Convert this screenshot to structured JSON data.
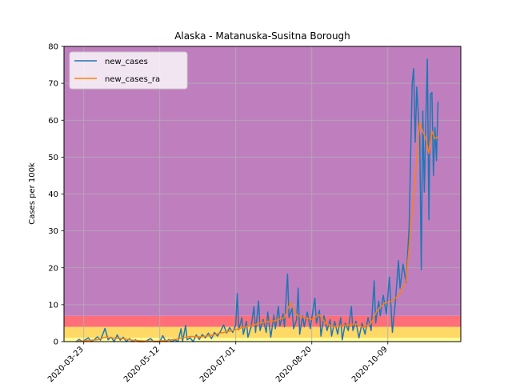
{
  "chart_data": {
    "type": "line",
    "title": "Alaska - Matanuska-Susitna Borough",
    "xlabel": "",
    "ylabel": "Cases per 100k",
    "x_range": [
      "2020-03-10",
      "2020-11-26"
    ],
    "ylim": [
      0,
      80
    ],
    "yticks": [
      0,
      10,
      20,
      30,
      40,
      50,
      60,
      70,
      80
    ],
    "xtick_dates": [
      "2020-03-23",
      "2020-05-12",
      "2020-07-01",
      "2020-08-20",
      "2020-10-09"
    ],
    "xtick_labels": [
      "2020-03-23",
      "2020-05-12",
      "2020-07-01",
      "2020-08-20",
      "2020-10-09"
    ],
    "grid": true,
    "legend_position": "top-left",
    "risk_bands": [
      {
        "from": 0,
        "to": 1,
        "color": "#ffff99"
      },
      {
        "from": 1,
        "to": 4,
        "color": "#ffd966"
      },
      {
        "from": 4,
        "to": 7,
        "color": "#ff6f7a"
      },
      {
        "from": 7,
        "to": 80,
        "color": "#bf7fbf"
      }
    ],
    "series": [
      {
        "name": "new_cases",
        "color": "#1f77b4",
        "points": [
          [
            "2020-03-18",
            0.0
          ],
          [
            "2020-03-20",
            0.6
          ],
          [
            "2020-03-22",
            0.0
          ],
          [
            "2020-03-24",
            0.5
          ],
          [
            "2020-03-26",
            1.0
          ],
          [
            "2020-03-28",
            0.0
          ],
          [
            "2020-03-30",
            0.5
          ],
          [
            "2020-04-01",
            1.3
          ],
          [
            "2020-04-03",
            0.4
          ],
          [
            "2020-04-05",
            2.5
          ],
          [
            "2020-04-06",
            3.6
          ],
          [
            "2020-04-08",
            0.5
          ],
          [
            "2020-04-10",
            1.2
          ],
          [
            "2020-04-12",
            0.0
          ],
          [
            "2020-04-14",
            1.8
          ],
          [
            "2020-04-16",
            0.4
          ],
          [
            "2020-04-18",
            1.2
          ],
          [
            "2020-04-20",
            0.0
          ],
          [
            "2020-04-22",
            0.8
          ],
          [
            "2020-04-24",
            0.0
          ],
          [
            "2020-04-26",
            0.5
          ],
          [
            "2020-04-28",
            0.0
          ],
          [
            "2020-05-02",
            0.0
          ],
          [
            "2020-05-06",
            0.8
          ],
          [
            "2020-05-08",
            0.0
          ],
          [
            "2020-05-12",
            0.0
          ],
          [
            "2020-05-14",
            1.6
          ],
          [
            "2020-05-16",
            0.0
          ],
          [
            "2020-05-18",
            0.6
          ],
          [
            "2020-05-20",
            0.0
          ],
          [
            "2020-05-22",
            0.5
          ],
          [
            "2020-05-24",
            0.0
          ],
          [
            "2020-05-26",
            3.5
          ],
          [
            "2020-05-27",
            0.0
          ],
          [
            "2020-05-29",
            4.4
          ],
          [
            "2020-05-30",
            0.5
          ],
          [
            "2020-06-01",
            1.0
          ],
          [
            "2020-06-03",
            0.0
          ],
          [
            "2020-06-05",
            1.8
          ],
          [
            "2020-06-07",
            0.6
          ],
          [
            "2020-06-09",
            1.9
          ],
          [
            "2020-06-11",
            1.0
          ],
          [
            "2020-06-13",
            2.3
          ],
          [
            "2020-06-15",
            0.8
          ],
          [
            "2020-06-17",
            2.5
          ],
          [
            "2020-06-19",
            1.5
          ],
          [
            "2020-06-21",
            2.8
          ],
          [
            "2020-06-23",
            4.5
          ],
          [
            "2020-06-25",
            2.3
          ],
          [
            "2020-06-27",
            3.8
          ],
          [
            "2020-06-29",
            2.5
          ],
          [
            "2020-07-01",
            4.6
          ],
          [
            "2020-07-02",
            13.0
          ],
          [
            "2020-07-03",
            3.2
          ],
          [
            "2020-07-05",
            6.5
          ],
          [
            "2020-07-06",
            2.0
          ],
          [
            "2020-07-08",
            5.5
          ],
          [
            "2020-07-09",
            1.2
          ],
          [
            "2020-07-11",
            3.8
          ],
          [
            "2020-07-13",
            9.5
          ],
          [
            "2020-07-14",
            2.5
          ],
          [
            "2020-07-16",
            11.0
          ],
          [
            "2020-07-17",
            3.0
          ],
          [
            "2020-07-19",
            6.0
          ],
          [
            "2020-07-21",
            2.5
          ],
          [
            "2020-07-22",
            8.0
          ],
          [
            "2020-07-24",
            1.2
          ],
          [
            "2020-07-26",
            7.2
          ],
          [
            "2020-07-27",
            3.5
          ],
          [
            "2020-07-29",
            9.5
          ],
          [
            "2020-07-30",
            4.2
          ],
          [
            "2020-08-01",
            7.5
          ],
          [
            "2020-08-02",
            4.0
          ],
          [
            "2020-08-04",
            18.3
          ],
          [
            "2020-08-05",
            6.5
          ],
          [
            "2020-08-07",
            9.0
          ],
          [
            "2020-08-08",
            3.5
          ],
          [
            "2020-08-10",
            6.0
          ],
          [
            "2020-08-11",
            14.5
          ],
          [
            "2020-08-12",
            2.0
          ],
          [
            "2020-08-14",
            7.0
          ],
          [
            "2020-08-15",
            4.0
          ],
          [
            "2020-08-17",
            8.0
          ],
          [
            "2020-08-19",
            3.5
          ],
          [
            "2020-08-20",
            6.5
          ],
          [
            "2020-08-22",
            11.8
          ],
          [
            "2020-08-23",
            5.0
          ],
          [
            "2020-08-25",
            8.5
          ],
          [
            "2020-08-26",
            1.5
          ],
          [
            "2020-08-28",
            7.0
          ],
          [
            "2020-08-30",
            3.0
          ],
          [
            "2020-09-01",
            6.0
          ],
          [
            "2020-09-02",
            1.5
          ],
          [
            "2020-09-04",
            5.5
          ],
          [
            "2020-09-06",
            2.0
          ],
          [
            "2020-09-08",
            6.5
          ],
          [
            "2020-09-09",
            0.5
          ],
          [
            "2020-09-11",
            5.0
          ],
          [
            "2020-09-13",
            3.0
          ],
          [
            "2020-09-15",
            9.5
          ],
          [
            "2020-09-16",
            3.0
          ],
          [
            "2020-09-18",
            5.5
          ],
          [
            "2020-09-20",
            1.0
          ],
          [
            "2020-09-22",
            5.0
          ],
          [
            "2020-09-24",
            2.0
          ],
          [
            "2020-09-26",
            6.5
          ],
          [
            "2020-09-28",
            3.0
          ],
          [
            "2020-09-30",
            16.5
          ],
          [
            "2020-10-01",
            5.0
          ],
          [
            "2020-10-03",
            11.0
          ],
          [
            "2020-10-04",
            7.0
          ],
          [
            "2020-10-06",
            12.5
          ],
          [
            "2020-10-08",
            7.5
          ],
          [
            "2020-10-10",
            17.5
          ],
          [
            "2020-10-12",
            2.5
          ],
          [
            "2020-10-14",
            11.0
          ],
          [
            "2020-10-16",
            22.0
          ],
          [
            "2020-10-17",
            14.5
          ],
          [
            "2020-10-19",
            21.0
          ],
          [
            "2020-10-21",
            16.0
          ],
          [
            "2020-10-23",
            31.0
          ],
          [
            "2020-10-25",
            70.0
          ],
          [
            "2020-10-26",
            74.0
          ],
          [
            "2020-10-27",
            54.0
          ],
          [
            "2020-10-28",
            69.0
          ],
          [
            "2020-10-29",
            62.0
          ],
          [
            "2020-10-30",
            55.0
          ],
          [
            "2020-10-31",
            19.5
          ],
          [
            "2020-11-01",
            62.5
          ],
          [
            "2020-11-02",
            40.5
          ],
          [
            "2020-11-03",
            60.0
          ],
          [
            "2020-11-04",
            76.5
          ],
          [
            "2020-11-05",
            33.0
          ],
          [
            "2020-11-06",
            67.0
          ],
          [
            "2020-11-07",
            67.5
          ],
          [
            "2020-11-08",
            45.0
          ],
          [
            "2020-11-09",
            58.0
          ],
          [
            "2020-11-10",
            49.0
          ],
          [
            "2020-11-11",
            65.0
          ]
        ]
      },
      {
        "name": "new_cases_ra",
        "color": "#ff7f0e",
        "points": [
          [
            "2020-03-18",
            0.0
          ],
          [
            "2020-03-25",
            0.3
          ],
          [
            "2020-04-01",
            0.5
          ],
          [
            "2020-04-06",
            1.2
          ],
          [
            "2020-04-12",
            0.9
          ],
          [
            "2020-04-18",
            0.8
          ],
          [
            "2020-04-24",
            0.4
          ],
          [
            "2020-05-01",
            0.2
          ],
          [
            "2020-05-10",
            0.1
          ],
          [
            "2020-05-18",
            0.4
          ],
          [
            "2020-05-25",
            0.8
          ],
          [
            "2020-06-01",
            1.4
          ],
          [
            "2020-06-08",
            1.3
          ],
          [
            "2020-06-15",
            1.7
          ],
          [
            "2020-06-22",
            2.4
          ],
          [
            "2020-06-29",
            3.0
          ],
          [
            "2020-07-05",
            3.8
          ],
          [
            "2020-07-12",
            4.4
          ],
          [
            "2020-07-19",
            5.3
          ],
          [
            "2020-07-26",
            5.6
          ],
          [
            "2020-08-02",
            6.5
          ],
          [
            "2020-08-06",
            10.7
          ],
          [
            "2020-08-10",
            7.2
          ],
          [
            "2020-08-15",
            6.5
          ],
          [
            "2020-08-20",
            6.0
          ],
          [
            "2020-08-25",
            7.3
          ],
          [
            "2020-08-29",
            5.0
          ],
          [
            "2020-09-03",
            4.0
          ],
          [
            "2020-09-08",
            4.3
          ],
          [
            "2020-09-13",
            4.5
          ],
          [
            "2020-09-18",
            4.8
          ],
          [
            "2020-09-23",
            3.8
          ],
          [
            "2020-09-28",
            5.0
          ],
          [
            "2020-10-02",
            8.5
          ],
          [
            "2020-10-07",
            10.5
          ],
          [
            "2020-10-12",
            11.0
          ],
          [
            "2020-10-17",
            13.0
          ],
          [
            "2020-10-21",
            16.5
          ],
          [
            "2020-10-24",
            30.0
          ],
          [
            "2020-10-27",
            44.0
          ],
          [
            "2020-10-30",
            59.5
          ],
          [
            "2020-11-01",
            57.0
          ],
          [
            "2020-11-03",
            55.0
          ],
          [
            "2020-11-05",
            51.0
          ],
          [
            "2020-11-07",
            57.0
          ],
          [
            "2020-11-09",
            55.0
          ],
          [
            "2020-11-11",
            55.5
          ]
        ]
      }
    ]
  }
}
